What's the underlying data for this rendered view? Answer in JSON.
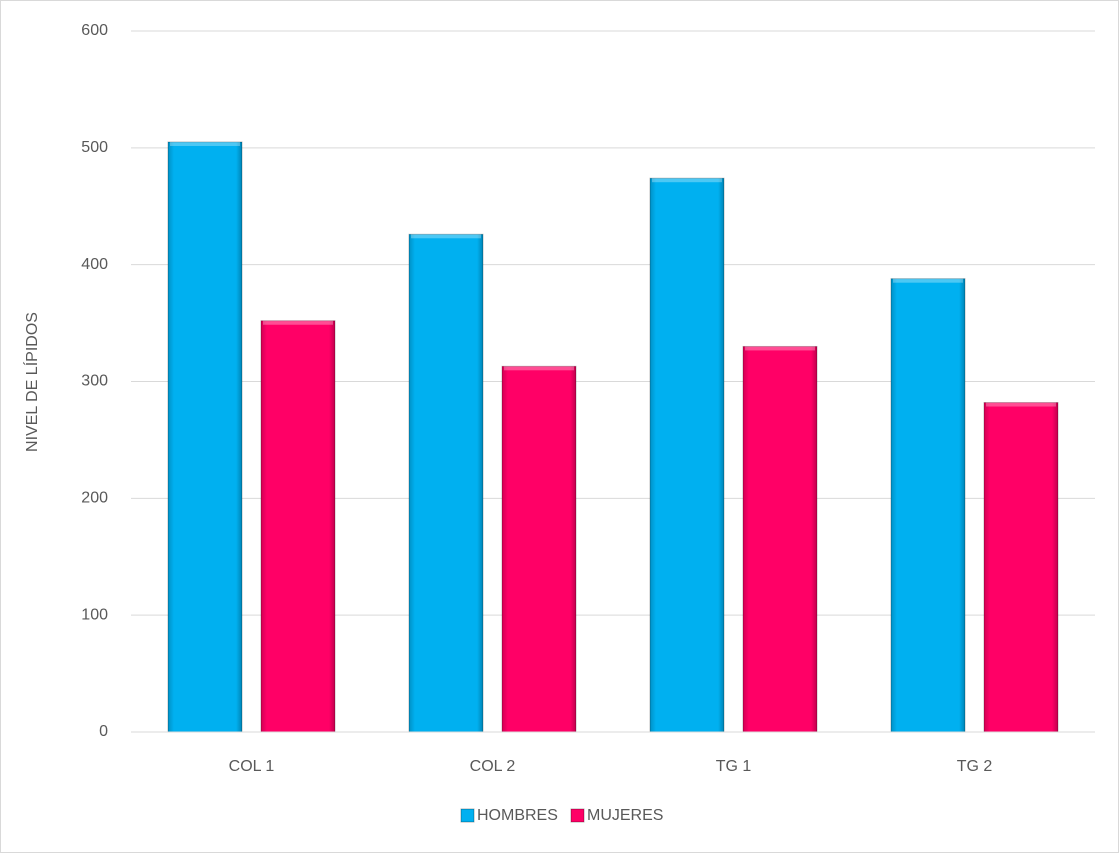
{
  "chart_data": {
    "type": "bar",
    "y_label": "NIVEL DE LÍPIDOS",
    "categories": [
      "COL 1",
      "COL 2",
      "TG 1",
      "TG 2"
    ],
    "series": [
      {
        "name": "HOMBRES",
        "color": "#00b0f0",
        "values": [
          505,
          426,
          474,
          388
        ]
      },
      {
        "name": "MUJERES",
        "color": "#ff0066",
        "values": [
          352,
          313,
          330,
          282
        ]
      }
    ],
    "ylim": [
      0,
      600
    ],
    "yticks": [
      0,
      100,
      200,
      300,
      400,
      500,
      600
    ],
    "grid": true,
    "legend": "bottom"
  }
}
